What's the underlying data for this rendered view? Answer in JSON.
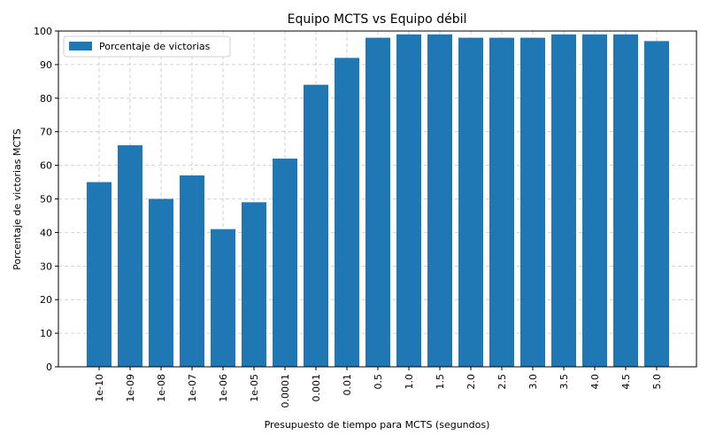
{
  "chart_data": {
    "type": "bar",
    "title": "Equipo MCTS vs Equipo débil",
    "xlabel": "Presupuesto de tiempo para MCTS (segundos)",
    "ylabel": "Porcentaje de victorias MCTS",
    "ylim": [
      0,
      100
    ],
    "yticks": [
      0,
      10,
      20,
      30,
      40,
      50,
      60,
      70,
      80,
      90,
      100
    ],
    "grid": true,
    "legend_position": "top-left",
    "bar_color": "#1f77b4",
    "categories": [
      "1e-10",
      "1e-09",
      "1e-08",
      "1e-07",
      "1e-06",
      "1e-05",
      "0.0001",
      "0.001",
      "0.01",
      "0.5",
      "1.0",
      "1.5",
      "2.0",
      "2.5",
      "3.0",
      "3.5",
      "4.0",
      "4.5",
      "5.0"
    ],
    "series": [
      {
        "name": "Porcentaje de victorias",
        "values": [
          55,
          66,
          50,
          57,
          41,
          49,
          62,
          84,
          92,
          98,
          99,
          99,
          98,
          98,
          98,
          99,
          99,
          99,
          97
        ]
      }
    ]
  }
}
